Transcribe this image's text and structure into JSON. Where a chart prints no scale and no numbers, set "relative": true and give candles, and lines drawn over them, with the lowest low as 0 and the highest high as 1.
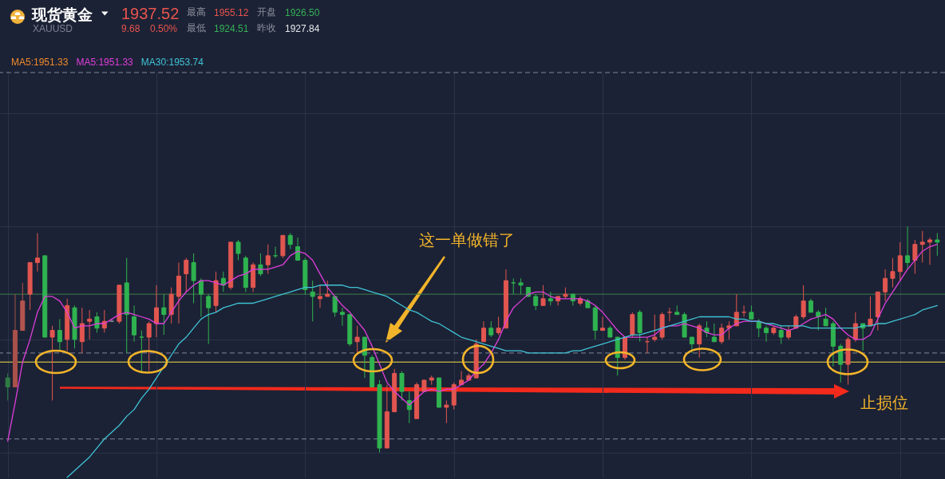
{
  "chart_data": {
    "type": "candlestick",
    "title": "现货黄金",
    "subtitle": "XAUUSD",
    "relative": true,
    "grid": true,
    "legend": "top left",
    "categories": [
      null,
      null,
      null,
      null,
      null,
      null,
      null,
      null,
      null,
      null,
      null,
      null,
      null,
      null,
      null,
      null,
      null,
      null,
      null,
      null,
      null,
      null,
      null,
      null,
      null,
      null,
      null,
      null,
      null,
      null,
      null,
      null,
      null,
      null,
      null,
      null,
      null,
      null,
      null,
      null,
      null,
      null,
      null,
      null,
      null,
      null,
      null,
      null,
      null,
      null,
      null,
      null,
      null,
      null,
      null,
      null,
      null,
      null,
      null,
      null,
      null,
      null,
      null,
      null,
      null,
      null,
      null,
      null,
      null,
      null,
      null,
      null,
      null,
      null,
      null,
      null,
      null,
      null,
      null,
      null,
      null,
      null,
      null,
      null,
      null,
      null,
      null,
      null,
      null,
      null,
      null,
      null,
      null,
      null,
      null,
      null,
      null,
      null,
      null,
      null,
      null,
      null,
      null,
      null,
      null,
      null,
      null,
      null,
      null,
      null,
      null,
      null,
      null,
      null,
      null,
      null,
      null,
      null,
      null,
      null,
      null,
      null,
      null,
      null,
      null,
      null
    ],
    "ohlc": [
      [
        0.33,
        0.35,
        0.23,
        0.29
      ],
      [
        0.29,
        0.7,
        0.29,
        0.54
      ],
      [
        0.54,
        0.75,
        0.54,
        0.67
      ],
      [
        0.7,
        0.84,
        0.63,
        0.84
      ],
      [
        0.84,
        0.97,
        0.8,
        0.86
      ],
      [
        0.87,
        0.87,
        0.51,
        0.51
      ],
      [
        0.51,
        0.56,
        0.23,
        0.54
      ],
      [
        0.54,
        0.59,
        0.45,
        0.49
      ],
      [
        0.5,
        0.68,
        0.45,
        0.65
      ],
      [
        0.64,
        0.65,
        0.46,
        0.5
      ],
      [
        0.49,
        0.64,
        0.44,
        0.57
      ],
      [
        0.58,
        0.63,
        0.5,
        0.59
      ],
      [
        0.6,
        0.62,
        0.53,
        0.55
      ],
      [
        0.55,
        0.63,
        0.53,
        0.58
      ],
      [
        0.58,
        0.59,
        0.58,
        0.58
      ],
      [
        0.58,
        0.74,
        0.57,
        0.74
      ],
      [
        0.75,
        0.86,
        0.44,
        0.61
      ],
      [
        0.6,
        0.65,
        0.49,
        0.52
      ],
      [
        0.51,
        0.54,
        0.35,
        0.51
      ],
      [
        0.51,
        0.58,
        0.36,
        0.57
      ],
      [
        0.57,
        0.74,
        0.51,
        0.64
      ],
      [
        0.64,
        0.7,
        0.52,
        0.61
      ],
      [
        0.61,
        0.73,
        0.57,
        0.7
      ],
      [
        0.69,
        0.84,
        0.57,
        0.78
      ],
      [
        0.79,
        0.86,
        0.71,
        0.85
      ],
      [
        0.84,
        0.88,
        0.66,
        0.76
      ],
      [
        0.76,
        0.77,
        0.6,
        0.7
      ],
      [
        0.69,
        0.7,
        0.48,
        0.64
      ],
      [
        0.65,
        0.8,
        0.62,
        0.76
      ],
      [
        0.77,
        0.8,
        0.71,
        0.74
      ],
      [
        0.73,
        0.93,
        0.72,
        0.93
      ],
      [
        0.93,
        0.94,
        0.85,
        0.88
      ],
      [
        0.86,
        0.87,
        0.71,
        0.73
      ],
      [
        0.73,
        0.84,
        0.71,
        0.83
      ],
      [
        0.83,
        0.88,
        0.78,
        0.79
      ],
      [
        0.83,
        0.92,
        0.79,
        0.87
      ],
      [
        0.87,
        0.91,
        0.86,
        0.87
      ],
      [
        0.87,
        0.96,
        0.86,
        0.96
      ],
      [
        0.96,
        0.97,
        0.9,
        0.92
      ],
      [
        0.91,
        0.95,
        0.85,
        0.85
      ],
      [
        0.85,
        0.86,
        0.7,
        0.72
      ],
      [
        0.71,
        0.76,
        0.58,
        0.69
      ],
      [
        0.68,
        0.74,
        0.64,
        0.69
      ],
      [
        0.69,
        0.76,
        0.69,
        0.7
      ],
      [
        0.69,
        0.69,
        0.6,
        0.62
      ],
      [
        0.62,
        0.64,
        0.56,
        0.61
      ],
      [
        0.61,
        0.61,
        0.47,
        0.48
      ],
      [
        0.49,
        0.56,
        0.44,
        0.51
      ],
      [
        0.51,
        0.51,
        0.33,
        0.43
      ],
      [
        0.42,
        0.43,
        0.29,
        0.29
      ],
      [
        0.3,
        0.32,
        0.0,
        0.02
      ],
      [
        0.02,
        0.3,
        0.02,
        0.18
      ],
      [
        0.18,
        0.37,
        0.18,
        0.35
      ],
      [
        0.35,
        0.36,
        0.23,
        0.27
      ],
      [
        0.23,
        0.27,
        0.13,
        0.19
      ],
      [
        0.15,
        0.31,
        0.15,
        0.3
      ],
      [
        0.27,
        0.32,
        0.27,
        0.32
      ],
      [
        0.32,
        0.34,
        0.3,
        0.33
      ],
      [
        0.33,
        0.33,
        0.2,
        0.2
      ],
      [
        0.2,
        0.23,
        0.13,
        0.21
      ],
      [
        0.21,
        0.31,
        0.19,
        0.3
      ],
      [
        0.3,
        0.36,
        0.3,
        0.32
      ],
      [
        0.32,
        0.35,
        0.32,
        0.34
      ],
      [
        0.33,
        0.5,
        0.33,
        0.48
      ],
      [
        0.49,
        0.58,
        0.49,
        0.55
      ],
      [
        0.55,
        0.58,
        0.51,
        0.52
      ],
      [
        0.53,
        0.6,
        0.52,
        0.55
      ],
      [
        0.55,
        0.81,
        0.55,
        0.76
      ],
      [
        0.75,
        0.77,
        0.7,
        0.75
      ],
      [
        0.75,
        0.77,
        0.7,
        0.74
      ],
      [
        0.73,
        0.73,
        0.69,
        0.69
      ],
      [
        0.69,
        0.7,
        0.63,
        0.65
      ],
      [
        0.65,
        0.74,
        0.65,
        0.68
      ],
      [
        0.68,
        0.71,
        0.65,
        0.67
      ],
      [
        0.67,
        0.69,
        0.65,
        0.69
      ],
      [
        0.69,
        0.73,
        0.68,
        0.7
      ],
      [
        0.7,
        0.7,
        0.65,
        0.67
      ],
      [
        0.66,
        0.69,
        0.65,
        0.68
      ],
      [
        0.67,
        0.68,
        0.64,
        0.64
      ],
      [
        0.64,
        0.65,
        0.5,
        0.54
      ],
      [
        0.54,
        0.6,
        0.54,
        0.55
      ],
      [
        0.55,
        0.56,
        0.51,
        0.51
      ],
      [
        0.51,
        0.51,
        0.34,
        0.42
      ],
      [
        0.42,
        0.51,
        0.41,
        0.51
      ],
      [
        0.52,
        0.62,
        0.51,
        0.61
      ],
      [
        0.62,
        0.63,
        0.49,
        0.53
      ],
      [
        0.49,
        0.51,
        0.44,
        0.49
      ],
      [
        0.5,
        0.61,
        0.49,
        0.51
      ],
      [
        0.51,
        0.62,
        0.5,
        0.61
      ],
      [
        0.62,
        0.64,
        0.58,
        0.62
      ],
      [
        0.62,
        0.65,
        0.61,
        0.61
      ],
      [
        0.61,
        0.62,
        0.51,
        0.51
      ],
      [
        0.51,
        0.51,
        0.44,
        0.48
      ],
      [
        0.48,
        0.57,
        0.42,
        0.56
      ],
      [
        0.55,
        0.58,
        0.51,
        0.53
      ],
      [
        0.51,
        0.57,
        0.49,
        0.49
      ],
      [
        0.49,
        0.57,
        0.48,
        0.55
      ],
      [
        0.55,
        0.58,
        0.5,
        0.56
      ],
      [
        0.56,
        0.7,
        0.56,
        0.62
      ],
      [
        0.62,
        0.65,
        0.6,
        0.62
      ],
      [
        0.62,
        0.65,
        0.59,
        0.59
      ],
      [
        0.58,
        0.59,
        0.51,
        0.55
      ],
      [
        0.55,
        0.56,
        0.49,
        0.53
      ],
      [
        0.53,
        0.56,
        0.52,
        0.55
      ],
      [
        0.54,
        0.56,
        0.48,
        0.51
      ],
      [
        0.51,
        0.56,
        0.5,
        0.54
      ],
      [
        0.55,
        0.61,
        0.55,
        0.6
      ],
      [
        0.6,
        0.74,
        0.59,
        0.67
      ],
      [
        0.67,
        0.68,
        0.62,
        0.62
      ],
      [
        0.62,
        0.63,
        0.54,
        0.6
      ],
      [
        0.59,
        0.64,
        0.56,
        0.56
      ],
      [
        0.57,
        0.58,
        0.38,
        0.47
      ],
      [
        0.47,
        0.48,
        0.31,
        0.39
      ],
      [
        0.39,
        0.51,
        0.3,
        0.5
      ],
      [
        0.5,
        0.62,
        0.49,
        0.57
      ],
      [
        0.57,
        0.57,
        0.45,
        0.55
      ],
      [
        0.56,
        0.69,
        0.56,
        0.59
      ],
      [
        0.6,
        0.71,
        0.54,
        0.71
      ],
      [
        0.71,
        0.81,
        0.67,
        0.77
      ],
      [
        0.77,
        0.86,
        0.73,
        0.8
      ],
      [
        0.8,
        0.93,
        0.76,
        0.87
      ],
      [
        0.87,
        1.0,
        0.81,
        0.84
      ],
      [
        0.85,
        0.94,
        0.79,
        0.92
      ],
      [
        0.92,
        0.98,
        0.84,
        0.93
      ],
      [
        0.93,
        0.95,
        0.83,
        0.94
      ],
      [
        0.94,
        0.97,
        0.87,
        0.93
      ]
    ],
    "colors": [
      "#2f7d45",
      "#a9514b",
      "#b3554e",
      "#e25650",
      "#e25650",
      "#2fb350",
      "#e25650",
      "#2fb350",
      "#e25650",
      "#2fb350",
      "#e25650",
      "#e25650",
      "#2fb350",
      "#e25650",
      "#8c8f96",
      "#e25650",
      "#2fb350",
      "#2fb350",
      "#2fb350",
      "#e25650",
      "#e25650",
      "#2fb350",
      "#e25650",
      "#e25650",
      "#e25650",
      "#2fb350",
      "#2fb350",
      "#2fb350",
      "#e25650",
      "#2fb350",
      "#e25650",
      "#2fb350",
      "#2fb350",
      "#e25650",
      "#2fb350",
      "#e25650",
      "#2fb350",
      "#e25650",
      "#2fb350",
      "#2fb350",
      "#2fb350",
      "#2fb350",
      "#e25650",
      "#e25650",
      "#2fb350",
      "#2fb350",
      "#2fb350",
      "#e25650",
      "#2fb350",
      "#2fb350",
      "#2fb350",
      "#e25650",
      "#e25650",
      "#2fb350",
      "#2fb350",
      "#e25650",
      "#e25650",
      "#e25650",
      "#2fb350",
      "#e25650",
      "#e25650",
      "#e25650",
      "#e25650",
      "#e25650",
      "#e25650",
      "#2fb350",
      "#e25650",
      "#e25650",
      "#2fb350",
      "#2fb350",
      "#2fb350",
      "#2fb350",
      "#e25650",
      "#2fb350",
      "#e25650",
      "#e25650",
      "#2fb350",
      "#e25650",
      "#2fb350",
      "#2fb350",
      "#e25650",
      "#2fb350",
      "#2fb350",
      "#e25650",
      "#e25650",
      "#2fb350",
      "#e25650",
      "#e25650",
      "#e25650",
      "#e25650",
      "#2fb350",
      "#2fb350",
      "#2fb350",
      "#e25650",
      "#2fb350",
      "#2fb350",
      "#e25650",
      "#e25650",
      "#e25650",
      "#e25650",
      "#2fb350",
      "#2fb350",
      "#2fb350",
      "#e25650",
      "#2fb350",
      "#e25650",
      "#e25650",
      "#e25650",
      "#2fb350",
      "#2fb350",
      "#2fb350",
      "#2fb350",
      "#2fb350",
      "#e25650",
      "#e25650",
      "#2fb350",
      "#e25650",
      "#e25650",
      "#e25650",
      "#e25650",
      "#e25650",
      "#2fb350",
      "#e25650",
      "#e25650",
      "#e25650",
      "#2fb350"
    ],
    "series": [
      {
        "name": "MA5:1951.33",
        "color": "#ef8a2b",
        "type": "line",
        "values": [
          null,
          null,
          null,
          null,
          null,
          null,
          null,
          null,
          null,
          null,
          null,
          null,
          null,
          null,
          null,
          null,
          null,
          null,
          null,
          null,
          null,
          null,
          null,
          null,
          null,
          null,
          null,
          null,
          null,
          null,
          null,
          null,
          null,
          null,
          null,
          null,
          null,
          null,
          null,
          null,
          null,
          null,
          null,
          null,
          null,
          null,
          null,
          null,
          null,
          null,
          null,
          null,
          null,
          null,
          null,
          null,
          null,
          null,
          null,
          null,
          null,
          null,
          null,
          null,
          null,
          null,
          null,
          null,
          null,
          null,
          null,
          null,
          null,
          null,
          null,
          null,
          null,
          null,
          null,
          null,
          null,
          null,
          null,
          null,
          null,
          null,
          null,
          null,
          null,
          null,
          null,
          null,
          null,
          null,
          null,
          null,
          null,
          null,
          null,
          null,
          null,
          null,
          null,
          null,
          null,
          null,
          null,
          null,
          null,
          null,
          null,
          null,
          null,
          null,
          null,
          null,
          null,
          null,
          null,
          null,
          null,
          null,
          null,
          null,
          null,
          null
        ]
      },
      {
        "name": "MA5:1951.33",
        "color": "#df3fdc",
        "type": "line",
        "values": [
          0.05,
          0.22,
          0.4,
          0.5,
          0.62,
          0.69,
          0.69,
          0.67,
          0.62,
          0.55,
          0.56,
          0.56,
          0.57,
          0.57,
          0.59,
          0.61,
          0.62,
          0.61,
          0.6,
          0.59,
          0.57,
          0.57,
          0.62,
          0.67,
          0.71,
          0.74,
          0.76,
          0.76,
          0.75,
          0.74,
          0.76,
          0.78,
          0.79,
          0.81,
          0.81,
          0.81,
          0.82,
          0.83,
          0.87,
          0.89,
          0.88,
          0.85,
          0.79,
          0.73,
          0.69,
          0.65,
          0.62,
          0.58,
          0.54,
          0.47,
          0.39,
          0.31,
          0.27,
          0.24,
          0.21,
          0.24,
          0.27,
          0.28,
          0.27,
          0.28,
          0.28,
          0.3,
          0.32,
          0.36,
          0.39,
          0.44,
          0.5,
          0.58,
          0.64,
          0.67,
          0.7,
          0.71,
          0.71,
          0.69,
          0.68,
          0.68,
          0.68,
          0.68,
          0.67,
          0.65,
          0.62,
          0.58,
          0.54,
          0.51,
          0.51,
          0.51,
          0.51,
          0.52,
          0.55,
          0.56,
          0.56,
          0.57,
          0.56,
          0.55,
          0.53,
          0.52,
          0.52,
          0.55,
          0.57,
          0.58,
          0.58,
          0.58,
          0.57,
          0.56,
          0.55,
          0.54,
          0.55,
          0.57,
          0.59,
          0.6,
          0.61,
          0.59,
          0.55,
          0.52,
          0.5,
          0.5,
          0.52,
          0.59,
          0.66,
          0.71,
          0.76,
          0.81,
          0.85,
          0.89,
          0.91,
          0.92
        ]
      },
      {
        "name": "MA30:1953.74",
        "color": "#3fc3d6",
        "type": "line",
        "values": [
          null,
          null,
          null,
          null,
          null,
          null,
          null,
          null,
          -0.11,
          -0.08,
          -0.05,
          -0.02,
          0.02,
          0.06,
          0.09,
          0.12,
          0.16,
          0.19,
          0.24,
          0.28,
          0.33,
          0.38,
          0.43,
          0.48,
          0.51,
          0.55,
          0.59,
          0.61,
          0.62,
          0.64,
          0.65,
          0.66,
          0.66,
          0.66,
          0.67,
          0.68,
          0.69,
          0.7,
          0.71,
          0.72,
          0.73,
          0.73,
          0.74,
          0.74,
          0.74,
          0.74,
          0.73,
          0.73,
          0.72,
          0.71,
          0.7,
          0.69,
          0.67,
          0.65,
          0.63,
          0.62,
          0.6,
          0.58,
          0.57,
          0.55,
          0.53,
          0.51,
          0.5,
          0.49,
          0.48,
          0.47,
          0.46,
          0.45,
          0.45,
          0.45,
          0.44,
          0.44,
          0.44,
          0.44,
          0.44,
          0.44,
          0.45,
          0.45,
          0.46,
          0.47,
          0.48,
          0.49,
          0.5,
          0.51,
          0.52,
          0.52,
          0.53,
          0.54,
          0.55,
          0.56,
          0.57,
          0.58,
          0.59,
          0.6,
          0.6,
          0.6,
          0.6,
          0.6,
          0.59,
          0.59,
          0.58,
          0.58,
          0.57,
          0.57,
          0.56,
          0.56,
          0.56,
          0.56,
          0.55,
          0.55,
          0.55,
          0.55,
          0.55,
          0.55,
          0.55,
          0.56,
          0.56,
          0.57,
          0.57,
          0.58,
          0.59,
          0.6,
          0.61,
          0.63,
          0.64,
          0.65
        ]
      }
    ],
    "ref_lines": [
      {
        "axis": "y",
        "value": 1.68,
        "color": "#7f879a",
        "line_style": "dashed"
      },
      {
        "axis": "y",
        "value": 0.7,
        "color": "#3d7f4c"
      },
      {
        "axis": "y",
        "value": 0.44,
        "color": "#7f879a",
        "line_style": "dashed"
      },
      {
        "axis": "y",
        "value": 0.4,
        "color": "#f2e14a"
      },
      {
        "axis": "y",
        "value": 0.06,
        "color": "#7f879a",
        "line_style": "dashed"
      }
    ],
    "annotations": [
      "1937.52",
      "9.68",
      "0.50%",
      "最高",
      "1955.12",
      "开盘",
      "1926.50",
      "最低",
      "1924.51",
      "昨收",
      "1927.84",
      "这一单做错了",
      "止损位"
    ]
  }
}
